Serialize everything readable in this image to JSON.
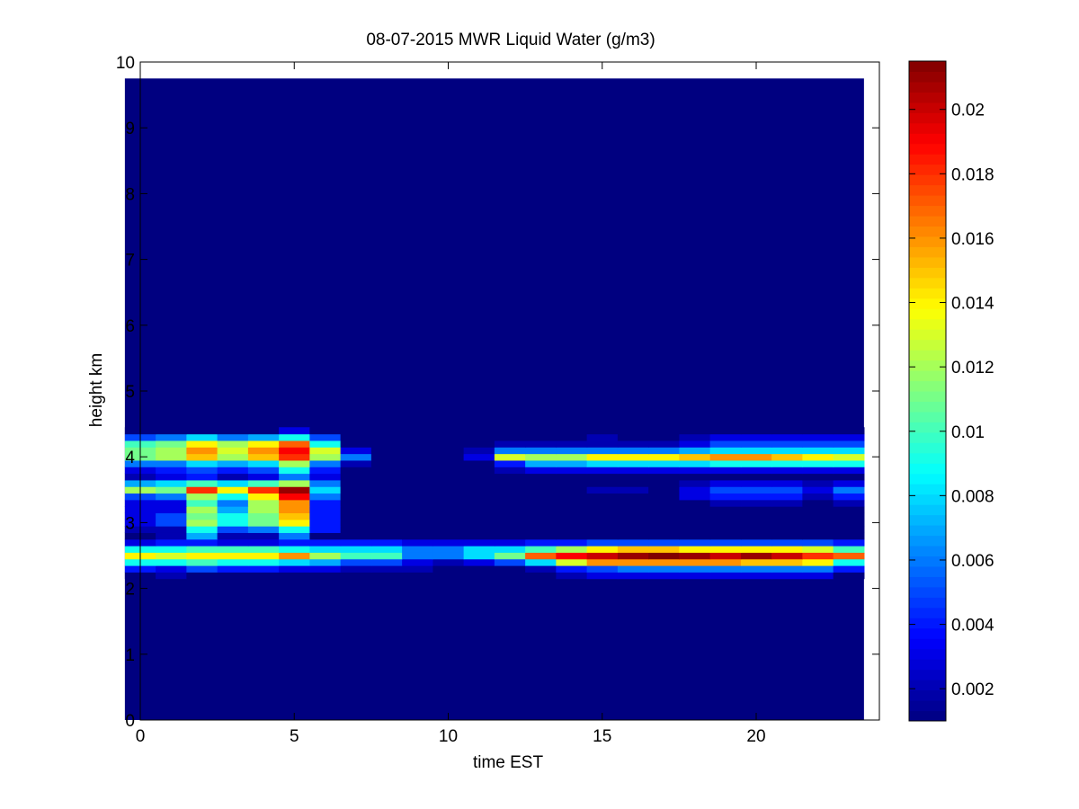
{
  "chart_data": {
    "type": "heatmap",
    "title": "08-07-2015 MWR Liquid Water (g/m3)",
    "xlabel": "time EST",
    "ylabel": "height km",
    "xlim": [
      0,
      24
    ],
    "ylim": [
      0,
      10
    ],
    "xticks": [
      0,
      5,
      10,
      15,
      20
    ],
    "yticks": [
      0,
      1,
      2,
      3,
      4,
      5,
      6,
      7,
      8,
      9,
      10
    ],
    "colormap": "jet",
    "colorbar": {
      "min": 0.001,
      "max": 0.0215,
      "ticks": [
        0.002,
        0.004,
        0.006,
        0.008,
        0.01,
        0.012,
        0.014,
        0.016,
        0.018,
        0.02
      ],
      "tick_labels": [
        "0.002",
        "0.004",
        "0.006",
        "0.008",
        "0.01",
        "0.012",
        "0.014",
        "0.016",
        "0.018",
        "0.02"
      ]
    },
    "times": [
      0.5,
      1.5,
      2.5,
      3.5,
      4.5,
      5.5,
      6.5,
      7.5,
      8.5,
      9.5,
      10.5,
      11.5,
      12.5,
      13.5,
      14.5,
      15.5,
      16.5,
      17.5,
      18.5,
      19.5,
      20.5,
      21.5,
      22.5,
      23.5
    ],
    "data_top_km": 9.75,
    "background_value": 0.001,
    "layers": [
      {
        "z": 2.2,
        "values": [
          0.001,
          0.002,
          0.001,
          0.001,
          0.001,
          0.001,
          0.001,
          0.001,
          0.001,
          0.001,
          0.001,
          0.001,
          0.001,
          0.001,
          0.002,
          0.003,
          0.003,
          0.003,
          0.003,
          0.003,
          0.003,
          0.003,
          0.003,
          0.001
        ]
      },
      {
        "z": 2.3,
        "values": [
          0.004,
          0.003,
          0.005,
          0.004,
          0.004,
          0.003,
          0.003,
          0.002,
          0.002,
          0.002,
          0.001,
          0.001,
          0.001,
          0.002,
          0.004,
          0.005,
          0.006,
          0.006,
          0.006,
          0.006,
          0.006,
          0.006,
          0.006,
          0.004
        ]
      },
      {
        "z": 2.4,
        "values": [
          0.009,
          0.009,
          0.01,
          0.009,
          0.009,
          0.008,
          0.007,
          0.005,
          0.005,
          0.003,
          0.002,
          0.003,
          0.005,
          0.008,
          0.013,
          0.016,
          0.016,
          0.016,
          0.016,
          0.016,
          0.015,
          0.015,
          0.014,
          0.009
        ]
      },
      {
        "z": 2.5,
        "values": [
          0.014,
          0.013,
          0.014,
          0.014,
          0.014,
          0.016,
          0.012,
          0.01,
          0.01,
          0.006,
          0.006,
          0.008,
          0.011,
          0.017,
          0.019,
          0.02,
          0.021,
          0.0215,
          0.021,
          0.02,
          0.021,
          0.02,
          0.018,
          0.017
        ]
      },
      {
        "z": 2.6,
        "values": [
          0.009,
          0.009,
          0.01,
          0.01,
          0.01,
          0.009,
          0.008,
          0.008,
          0.008,
          0.006,
          0.006,
          0.008,
          0.008,
          0.01,
          0.012,
          0.014,
          0.015,
          0.015,
          0.014,
          0.014,
          0.014,
          0.014,
          0.013,
          0.01
        ]
      },
      {
        "z": 2.7,
        "values": [
          0.003,
          0.004,
          0.004,
          0.003,
          0.003,
          0.004,
          0.004,
          0.004,
          0.004,
          0.003,
          0.003,
          0.003,
          0.003,
          0.004,
          0.004,
          0.005,
          0.005,
          0.005,
          0.005,
          0.005,
          0.005,
          0.005,
          0.005,
          0.004
        ]
      },
      {
        "z": 2.8,
        "values": [
          0.001,
          0.002,
          0.007,
          0.002,
          0.002,
          0.006,
          0.001,
          0.001,
          0.001,
          0.001,
          0.001,
          0.001,
          0.001,
          0.001,
          0.001,
          0.001,
          0.001,
          0.001,
          0.001,
          0.001,
          0.001,
          0.001,
          0.001,
          0.001
        ]
      },
      {
        "z": 2.9,
        "values": [
          0.002,
          0.002,
          0.009,
          0.005,
          0.006,
          0.009,
          0.004,
          0.001,
          0.001,
          0.001,
          0.001,
          0.001,
          0.001,
          0.001,
          0.001,
          0.001,
          0.001,
          0.001,
          0.001,
          0.001,
          0.001,
          0.001,
          0.001,
          0.001
        ]
      },
      {
        "z": 3.0,
        "values": [
          0.003,
          0.005,
          0.012,
          0.009,
          0.011,
          0.014,
          0.004,
          0.001,
          0.001,
          0.001,
          0.001,
          0.001,
          0.001,
          0.001,
          0.001,
          0.001,
          0.001,
          0.001,
          0.001,
          0.001,
          0.001,
          0.001,
          0.001,
          0.001
        ]
      },
      {
        "z": 3.1,
        "values": [
          0.003,
          0.005,
          0.011,
          0.009,
          0.011,
          0.015,
          0.004,
          0.001,
          0.001,
          0.001,
          0.001,
          0.001,
          0.001,
          0.001,
          0.001,
          0.001,
          0.001,
          0.001,
          0.001,
          0.001,
          0.001,
          0.001,
          0.001,
          0.001
        ]
      },
      {
        "z": 3.2,
        "values": [
          0.003,
          0.003,
          0.012,
          0.007,
          0.012,
          0.016,
          0.004,
          0.001,
          0.001,
          0.001,
          0.001,
          0.001,
          0.001,
          0.001,
          0.001,
          0.001,
          0.001,
          0.001,
          0.001,
          0.001,
          0.001,
          0.001,
          0.001,
          0.001
        ]
      },
      {
        "z": 3.3,
        "values": [
          0.003,
          0.003,
          0.01,
          0.006,
          0.012,
          0.016,
          0.004,
          0.001,
          0.001,
          0.001,
          0.001,
          0.001,
          0.001,
          0.001,
          0.001,
          0.001,
          0.001,
          0.001,
          0.001,
          0.002,
          0.002,
          0.002,
          0.001,
          0.002
        ]
      },
      {
        "z": 3.4,
        "values": [
          0.005,
          0.006,
          0.012,
          0.009,
          0.014,
          0.019,
          0.006,
          0.001,
          0.001,
          0.001,
          0.001,
          0.001,
          0.001,
          0.001,
          0.001,
          0.001,
          0.001,
          0.001,
          0.003,
          0.004,
          0.004,
          0.004,
          0.002,
          0.004
        ]
      },
      {
        "z": 3.5,
        "values": [
          0.012,
          0.011,
          0.018,
          0.014,
          0.018,
          0.021,
          0.008,
          0.001,
          0.001,
          0.001,
          0.001,
          0.001,
          0.001,
          0.001,
          0.001,
          0.002,
          0.002,
          0.001,
          0.003,
          0.005,
          0.005,
          0.005,
          0.003,
          0.006
        ]
      },
      {
        "z": 3.6,
        "values": [
          0.007,
          0.008,
          0.01,
          0.008,
          0.01,
          0.012,
          0.006,
          0.001,
          0.001,
          0.001,
          0.001,
          0.001,
          0.001,
          0.001,
          0.001,
          0.001,
          0.001,
          0.001,
          0.002,
          0.003,
          0.003,
          0.003,
          0.002,
          0.003
        ]
      },
      {
        "z": 3.7,
        "values": [
          0.002,
          0.003,
          0.004,
          0.002,
          0.003,
          0.006,
          0.003,
          0.001,
          0.001,
          0.001,
          0.001,
          0.001,
          0.001,
          0.001,
          0.001,
          0.001,
          0.001,
          0.001,
          0.001,
          0.001,
          0.001,
          0.001,
          0.001,
          0.001
        ]
      },
      {
        "z": 3.8,
        "values": [
          0.003,
          0.004,
          0.005,
          0.004,
          0.005,
          0.009,
          0.004,
          0.001,
          0.001,
          0.001,
          0.001,
          0.001,
          0.002,
          0.003,
          0.003,
          0.003,
          0.003,
          0.003,
          0.003,
          0.003,
          0.003,
          0.003,
          0.003,
          0.003
        ]
      },
      {
        "z": 3.9,
        "values": [
          0.006,
          0.006,
          0.008,
          0.007,
          0.008,
          0.012,
          0.006,
          0.002,
          0.001,
          0.001,
          0.001,
          0.001,
          0.004,
          0.007,
          0.007,
          0.008,
          0.008,
          0.008,
          0.008,
          0.009,
          0.009,
          0.009,
          0.009,
          0.009
        ]
      },
      {
        "z": 4.0,
        "values": [
          0.011,
          0.012,
          0.015,
          0.012,
          0.015,
          0.018,
          0.012,
          0.006,
          0.001,
          0.001,
          0.001,
          0.003,
          0.013,
          0.012,
          0.012,
          0.014,
          0.014,
          0.014,
          0.015,
          0.016,
          0.016,
          0.015,
          0.014,
          0.013
        ]
      },
      {
        "z": 4.1,
        "values": [
          0.011,
          0.012,
          0.016,
          0.013,
          0.016,
          0.019,
          0.013,
          0.003,
          0.001,
          0.001,
          0.001,
          0.002,
          0.006,
          0.006,
          0.006,
          0.006,
          0.006,
          0.006,
          0.007,
          0.008,
          0.008,
          0.008,
          0.008,
          0.008
        ]
      },
      {
        "z": 4.2,
        "values": [
          0.01,
          0.011,
          0.014,
          0.012,
          0.014,
          0.017,
          0.009,
          0.001,
          0.001,
          0.001,
          0.001,
          0.001,
          0.002,
          0.002,
          0.002,
          0.002,
          0.002,
          0.002,
          0.003,
          0.005,
          0.005,
          0.005,
          0.005,
          0.005
        ]
      },
      {
        "z": 4.3,
        "values": [
          0.005,
          0.006,
          0.008,
          0.006,
          0.007,
          0.009,
          0.005,
          0.001,
          0.001,
          0.001,
          0.001,
          0.001,
          0.001,
          0.001,
          0.001,
          0.002,
          0.001,
          0.001,
          0.002,
          0.003,
          0.003,
          0.003,
          0.003,
          0.003
        ]
      },
      {
        "z": 4.4,
        "values": [
          0.001,
          0.001,
          0.001,
          0.001,
          0.001,
          0.003,
          0.001,
          0.001,
          0.001,
          0.001,
          0.001,
          0.001,
          0.001,
          0.001,
          0.001,
          0.001,
          0.001,
          0.001,
          0.001,
          0.001,
          0.001,
          0.001,
          0.001,
          0.001
        ]
      }
    ]
  }
}
